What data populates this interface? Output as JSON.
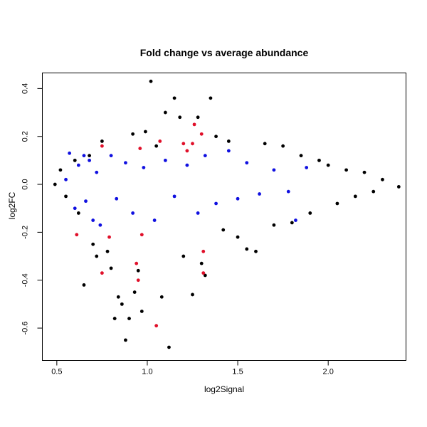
{
  "chart_data": {
    "type": "scatter",
    "title": "Fold change vs average abundance",
    "xlabel": "log2Signal",
    "ylabel": "log2FC",
    "xlim": [
      0.42,
      2.43
    ],
    "ylim": [
      -0.735,
      0.465
    ],
    "xticks": [
      0.5,
      1.0,
      1.5,
      2.0
    ],
    "xtick_labels": [
      "0.5",
      "1.0",
      "1.5",
      "2.0"
    ],
    "yticks": [
      -0.6,
      -0.4,
      -0.2,
      0.0,
      0.2,
      0.4
    ],
    "ytick_labels": [
      "-0.6",
      "-0.4",
      "-0.2",
      "0.0",
      "0.2",
      "0.4"
    ],
    "grid": false,
    "legend": "none",
    "colors": {
      "background": "#ffffff",
      "axis": "#000000",
      "black_points": "#000000",
      "red_points": "#e0102a",
      "blue_points": "#1010e0"
    },
    "series": [
      {
        "color": "#000000",
        "values": [
          [
            0.49,
            0.0
          ],
          [
            0.52,
            0.06
          ],
          [
            0.55,
            -0.05
          ],
          [
            0.6,
            0.1
          ],
          [
            0.62,
            -0.12
          ],
          [
            0.65,
            -0.42
          ],
          [
            0.68,
            0.12
          ],
          [
            0.7,
            -0.25
          ],
          [
            0.72,
            -0.3
          ],
          [
            0.75,
            0.18
          ],
          [
            0.78,
            -0.28
          ],
          [
            0.8,
            -0.35
          ],
          [
            0.82,
            -0.56
          ],
          [
            0.84,
            -0.47
          ],
          [
            0.86,
            -0.5
          ],
          [
            0.88,
            -0.65
          ],
          [
            0.9,
            -0.56
          ],
          [
            0.92,
            0.21
          ],
          [
            0.93,
            -0.45
          ],
          [
            0.95,
            -0.36
          ],
          [
            0.97,
            -0.53
          ],
          [
            0.99,
            0.22
          ],
          [
            1.02,
            0.43
          ],
          [
            1.05,
            0.16
          ],
          [
            1.08,
            -0.47
          ],
          [
            1.1,
            0.3
          ],
          [
            1.12,
            -0.68
          ],
          [
            1.15,
            0.36
          ],
          [
            1.18,
            0.28
          ],
          [
            1.2,
            -0.3
          ],
          [
            1.25,
            -0.46
          ],
          [
            1.28,
            0.28
          ],
          [
            1.3,
            -0.33
          ],
          [
            1.32,
            -0.38
          ],
          [
            1.35,
            0.36
          ],
          [
            1.38,
            0.2
          ],
          [
            1.42,
            -0.19
          ],
          [
            1.45,
            0.18
          ],
          [
            1.5,
            -0.22
          ],
          [
            1.55,
            -0.27
          ],
          [
            1.6,
            -0.28
          ],
          [
            1.65,
            0.17
          ],
          [
            1.7,
            -0.17
          ],
          [
            1.75,
            0.16
          ],
          [
            1.8,
            -0.16
          ],
          [
            1.85,
            0.12
          ],
          [
            1.9,
            -0.12
          ],
          [
            1.95,
            0.1
          ],
          [
            2.0,
            0.08
          ],
          [
            2.05,
            -0.08
          ],
          [
            2.1,
            0.06
          ],
          [
            2.15,
            -0.05
          ],
          [
            2.2,
            0.05
          ],
          [
            2.25,
            -0.03
          ],
          [
            2.3,
            0.02
          ],
          [
            2.39,
            -0.01
          ]
        ]
      },
      {
        "color": "#e0102a",
        "values": [
          [
            0.61,
            -0.21
          ],
          [
            0.75,
            -0.37
          ],
          [
            0.79,
            -0.22
          ],
          [
            0.94,
            -0.33
          ],
          [
            0.95,
            -0.4
          ],
          [
            1.05,
            -0.59
          ],
          [
            1.31,
            -0.37
          ],
          [
            1.31,
            -0.28
          ],
          [
            0.97,
            -0.21
          ],
          [
            0.75,
            0.16
          ],
          [
            0.96,
            0.15
          ],
          [
            1.07,
            0.18
          ],
          [
            1.2,
            0.17
          ],
          [
            1.22,
            0.14
          ],
          [
            1.25,
            0.17
          ],
          [
            1.26,
            0.25
          ],
          [
            1.3,
            0.21
          ]
        ]
      },
      {
        "color": "#1010e0",
        "values": [
          [
            0.55,
            0.02
          ],
          [
            0.57,
            0.13
          ],
          [
            0.6,
            -0.1
          ],
          [
            0.62,
            0.08
          ],
          [
            0.65,
            0.12
          ],
          [
            0.66,
            -0.07
          ],
          [
            0.68,
            0.1
          ],
          [
            0.7,
            -0.15
          ],
          [
            0.72,
            0.05
          ],
          [
            0.74,
            -0.17
          ],
          [
            0.8,
            0.12
          ],
          [
            0.83,
            -0.06
          ],
          [
            0.88,
            0.09
          ],
          [
            0.92,
            -0.12
          ],
          [
            0.98,
            0.07
          ],
          [
            1.04,
            -0.15
          ],
          [
            1.1,
            0.1
          ],
          [
            1.15,
            -0.05
          ],
          [
            1.22,
            0.08
          ],
          [
            1.28,
            -0.12
          ],
          [
            1.32,
            0.12
          ],
          [
            1.38,
            -0.08
          ],
          [
            1.45,
            0.14
          ],
          [
            1.5,
            -0.06
          ],
          [
            1.55,
            0.09
          ],
          [
            1.62,
            -0.04
          ],
          [
            1.7,
            0.06
          ],
          [
            1.78,
            -0.03
          ],
          [
            1.82,
            -0.15
          ],
          [
            1.88,
            0.07
          ]
        ]
      }
    ]
  }
}
